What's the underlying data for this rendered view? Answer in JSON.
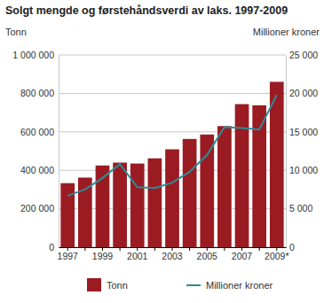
{
  "chart_data": {
    "type": "bar",
    "title": "Solgt mengde og førstehåndsverdi av laks. 1997-2009",
    "y_label": "Tonn",
    "y2_label": "Millioner kroner",
    "categories": [
      "1997",
      null,
      "1999",
      null,
      "2001",
      null,
      "2003",
      null,
      "2005",
      null,
      "2007",
      null,
      "2009*"
    ],
    "series": [
      {
        "name": "Tonn",
        "type": "bar",
        "color": "#9b1b22",
        "values": [
          333000,
          362000,
          425000,
          440000,
          435000,
          462000,
          509000,
          563000,
          586000,
          630000,
          744000,
          738000,
          860000
        ]
      },
      {
        "name": "Millioner kroner",
        "type": "line",
        "color": "#2b8c99",
        "axis": "y2",
        "values": [
          6700,
          7500,
          9000,
          10800,
          7800,
          7700,
          8400,
          9800,
          12000,
          15600,
          15500,
          15300,
          19800
        ]
      }
    ],
    "ylim": [
      0,
      1000000
    ],
    "yticks": [
      0,
      {
        "value": 200000,
        "label": "200 000"
      },
      {
        "value": 400000,
        "label": "400 000"
      },
      {
        "value": 600000,
        "label": "600 000"
      },
      {
        "value": 800000,
        "label": "800 000"
      },
      {
        "value": 1000000,
        "label": "1 000 000"
      }
    ],
    "y2lim": [
      0,
      25000
    ],
    "y2ticks": [
      0,
      {
        "value": 5000,
        "label": "5 000"
      },
      {
        "value": 10000,
        "label": "10 000"
      },
      {
        "value": 15000,
        "label": "15 000"
      },
      {
        "value": 20000,
        "label": "20 000"
      },
      {
        "value": 25000,
        "label": "25 000"
      }
    ],
    "grid": true,
    "legend": "bottom"
  }
}
